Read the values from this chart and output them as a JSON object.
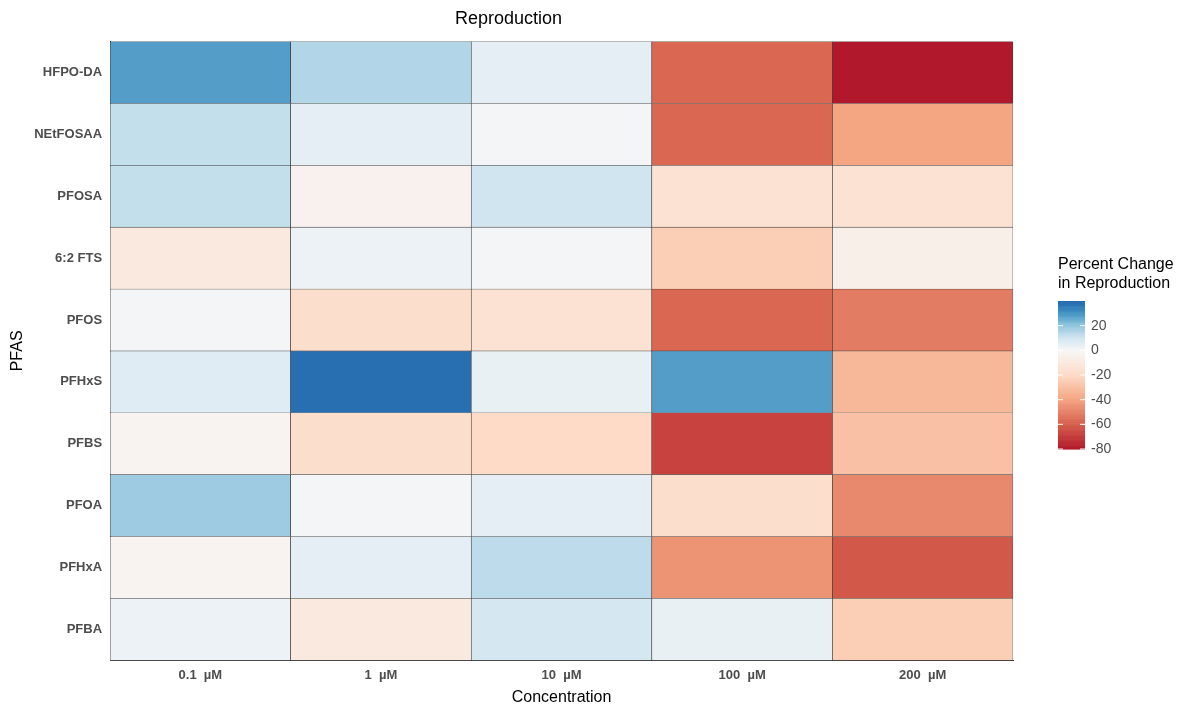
{
  "chart_data": {
    "type": "heatmap",
    "title": "Reproduction",
    "xlabel": "Concentration",
    "ylabel": "PFAS",
    "clabel": "Percent Change\nin Reproduction",
    "categories": [
      "0.1  µM",
      "1  µM",
      "10  µM",
      "100  µM",
      "200  µM"
    ],
    "y_categories": [
      "HFPO-DA",
      "NEtFOSAA",
      "PFOSA",
      "6:2 FTS",
      "PFOS",
      "PFHxS",
      "PFBS",
      "PFOA",
      "PFHxA",
      "PFBA"
    ],
    "cells": [
      [
        28,
        15,
        5,
        -58,
        -80
      ],
      [
        12,
        5,
        1,
        -58,
        -40
      ],
      [
        12,
        -4,
        10,
        -15,
        -15
      ],
      [
        -10,
        3,
        1,
        -25,
        -6
      ],
      [
        1,
        -18,
        -15,
        -58,
        -52
      ],
      [
        6,
        38,
        4,
        28,
        -33
      ],
      [
        -3,
        -18,
        -20,
        -68,
        -30
      ],
      [
        18,
        1,
        5,
        -18,
        -48
      ],
      [
        -3,
        5,
        13,
        -45,
        -62
      ],
      [
        3,
        -10,
        9,
        4,
        -25
      ]
    ],
    "clim": [
      -80,
      40
    ],
    "cticks": [
      -80,
      -60,
      -40,
      -20,
      0,
      20
    ]
  }
}
